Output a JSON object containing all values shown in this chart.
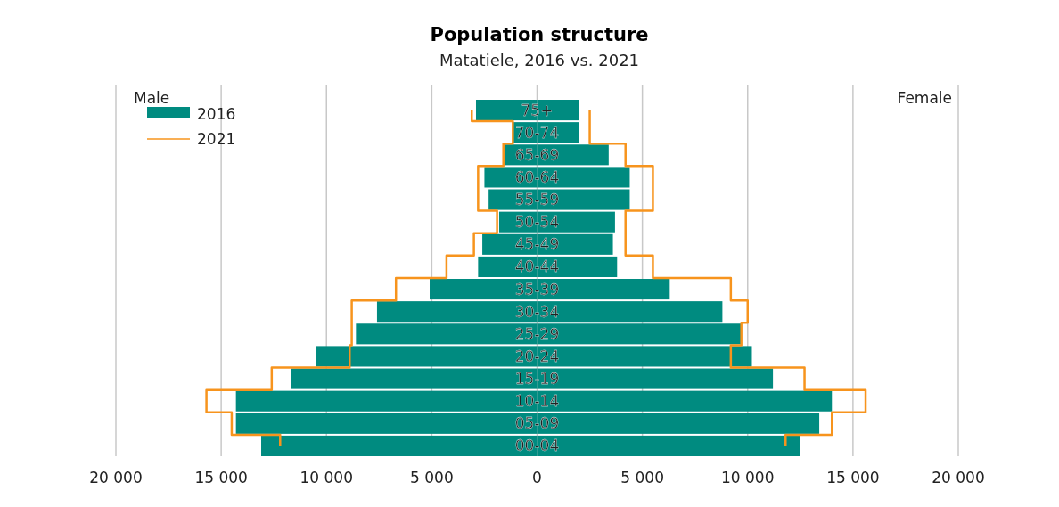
{
  "chart_data": {
    "type": "bar",
    "orientation": "horizontal",
    "title": "Population structure",
    "subtitle": "Matatiele, 2016 vs. 2021",
    "categories": [
      "75+",
      "70-74",
      "65-69",
      "60-64",
      "55-59",
      "50-54",
      "45-49",
      "40-44",
      "35-39",
      "30-34",
      "25-29",
      "20-24",
      "15-19",
      "10-14",
      "05-09",
      "00-04"
    ],
    "series": [
      {
        "name": "2016",
        "type": "bar",
        "color": "#008b80",
        "values": [
          -2900,
          -1150,
          -1600,
          -2500,
          -2300,
          -1800,
          -2600,
          -2800,
          -5100,
          -7600,
          -8600,
          -10500,
          -11700,
          -14300,
          -14300,
          -13100
        ]
      },
      {
        "type": "bar",
        "color": "#008b80",
        "values": [
          2000,
          2000,
          3400,
          4400,
          4400,
          3700,
          3600,
          3800,
          6300,
          8800,
          9700,
          10200,
          11200,
          14000,
          13400,
          12500
        ]
      },
      {
        "name": "2021",
        "type": "step",
        "color": "#f7941d",
        "values": [
          -3100,
          -1150,
          -1600,
          -2800,
          -2800,
          -1900,
          -3000,
          -4300,
          -6700,
          -8800,
          -8800,
          -8900,
          -12600,
          -15700,
          -14500,
          -12200
        ]
      },
      {
        "type": "step",
        "color": "#f7941d",
        "values": [
          2500,
          2500,
          4200,
          5500,
          5500,
          4200,
          4200,
          5500,
          9200,
          10000,
          9700,
          9200,
          12700,
          15600,
          14000,
          11800
        ]
      }
    ],
    "xlim": [
      -20000,
      20000
    ],
    "xticks": [
      {
        "value": -20000,
        "label": "20 000"
      },
      {
        "value": -15000,
        "label": "15 000"
      },
      {
        "value": -10000,
        "label": "10 000"
      },
      {
        "value": -5000,
        "label": "5 000"
      },
      0,
      {
        "value": 5000,
        "label": "5 000"
      },
      {
        "value": 10000,
        "label": "10 000"
      },
      {
        "value": 15000,
        "label": "15 000"
      },
      {
        "value": 20000,
        "label": "20 000"
      }
    ],
    "annotations": [
      "Male",
      "Female"
    ],
    "stacked": true,
    "grid": "x",
    "legend": "top left"
  }
}
